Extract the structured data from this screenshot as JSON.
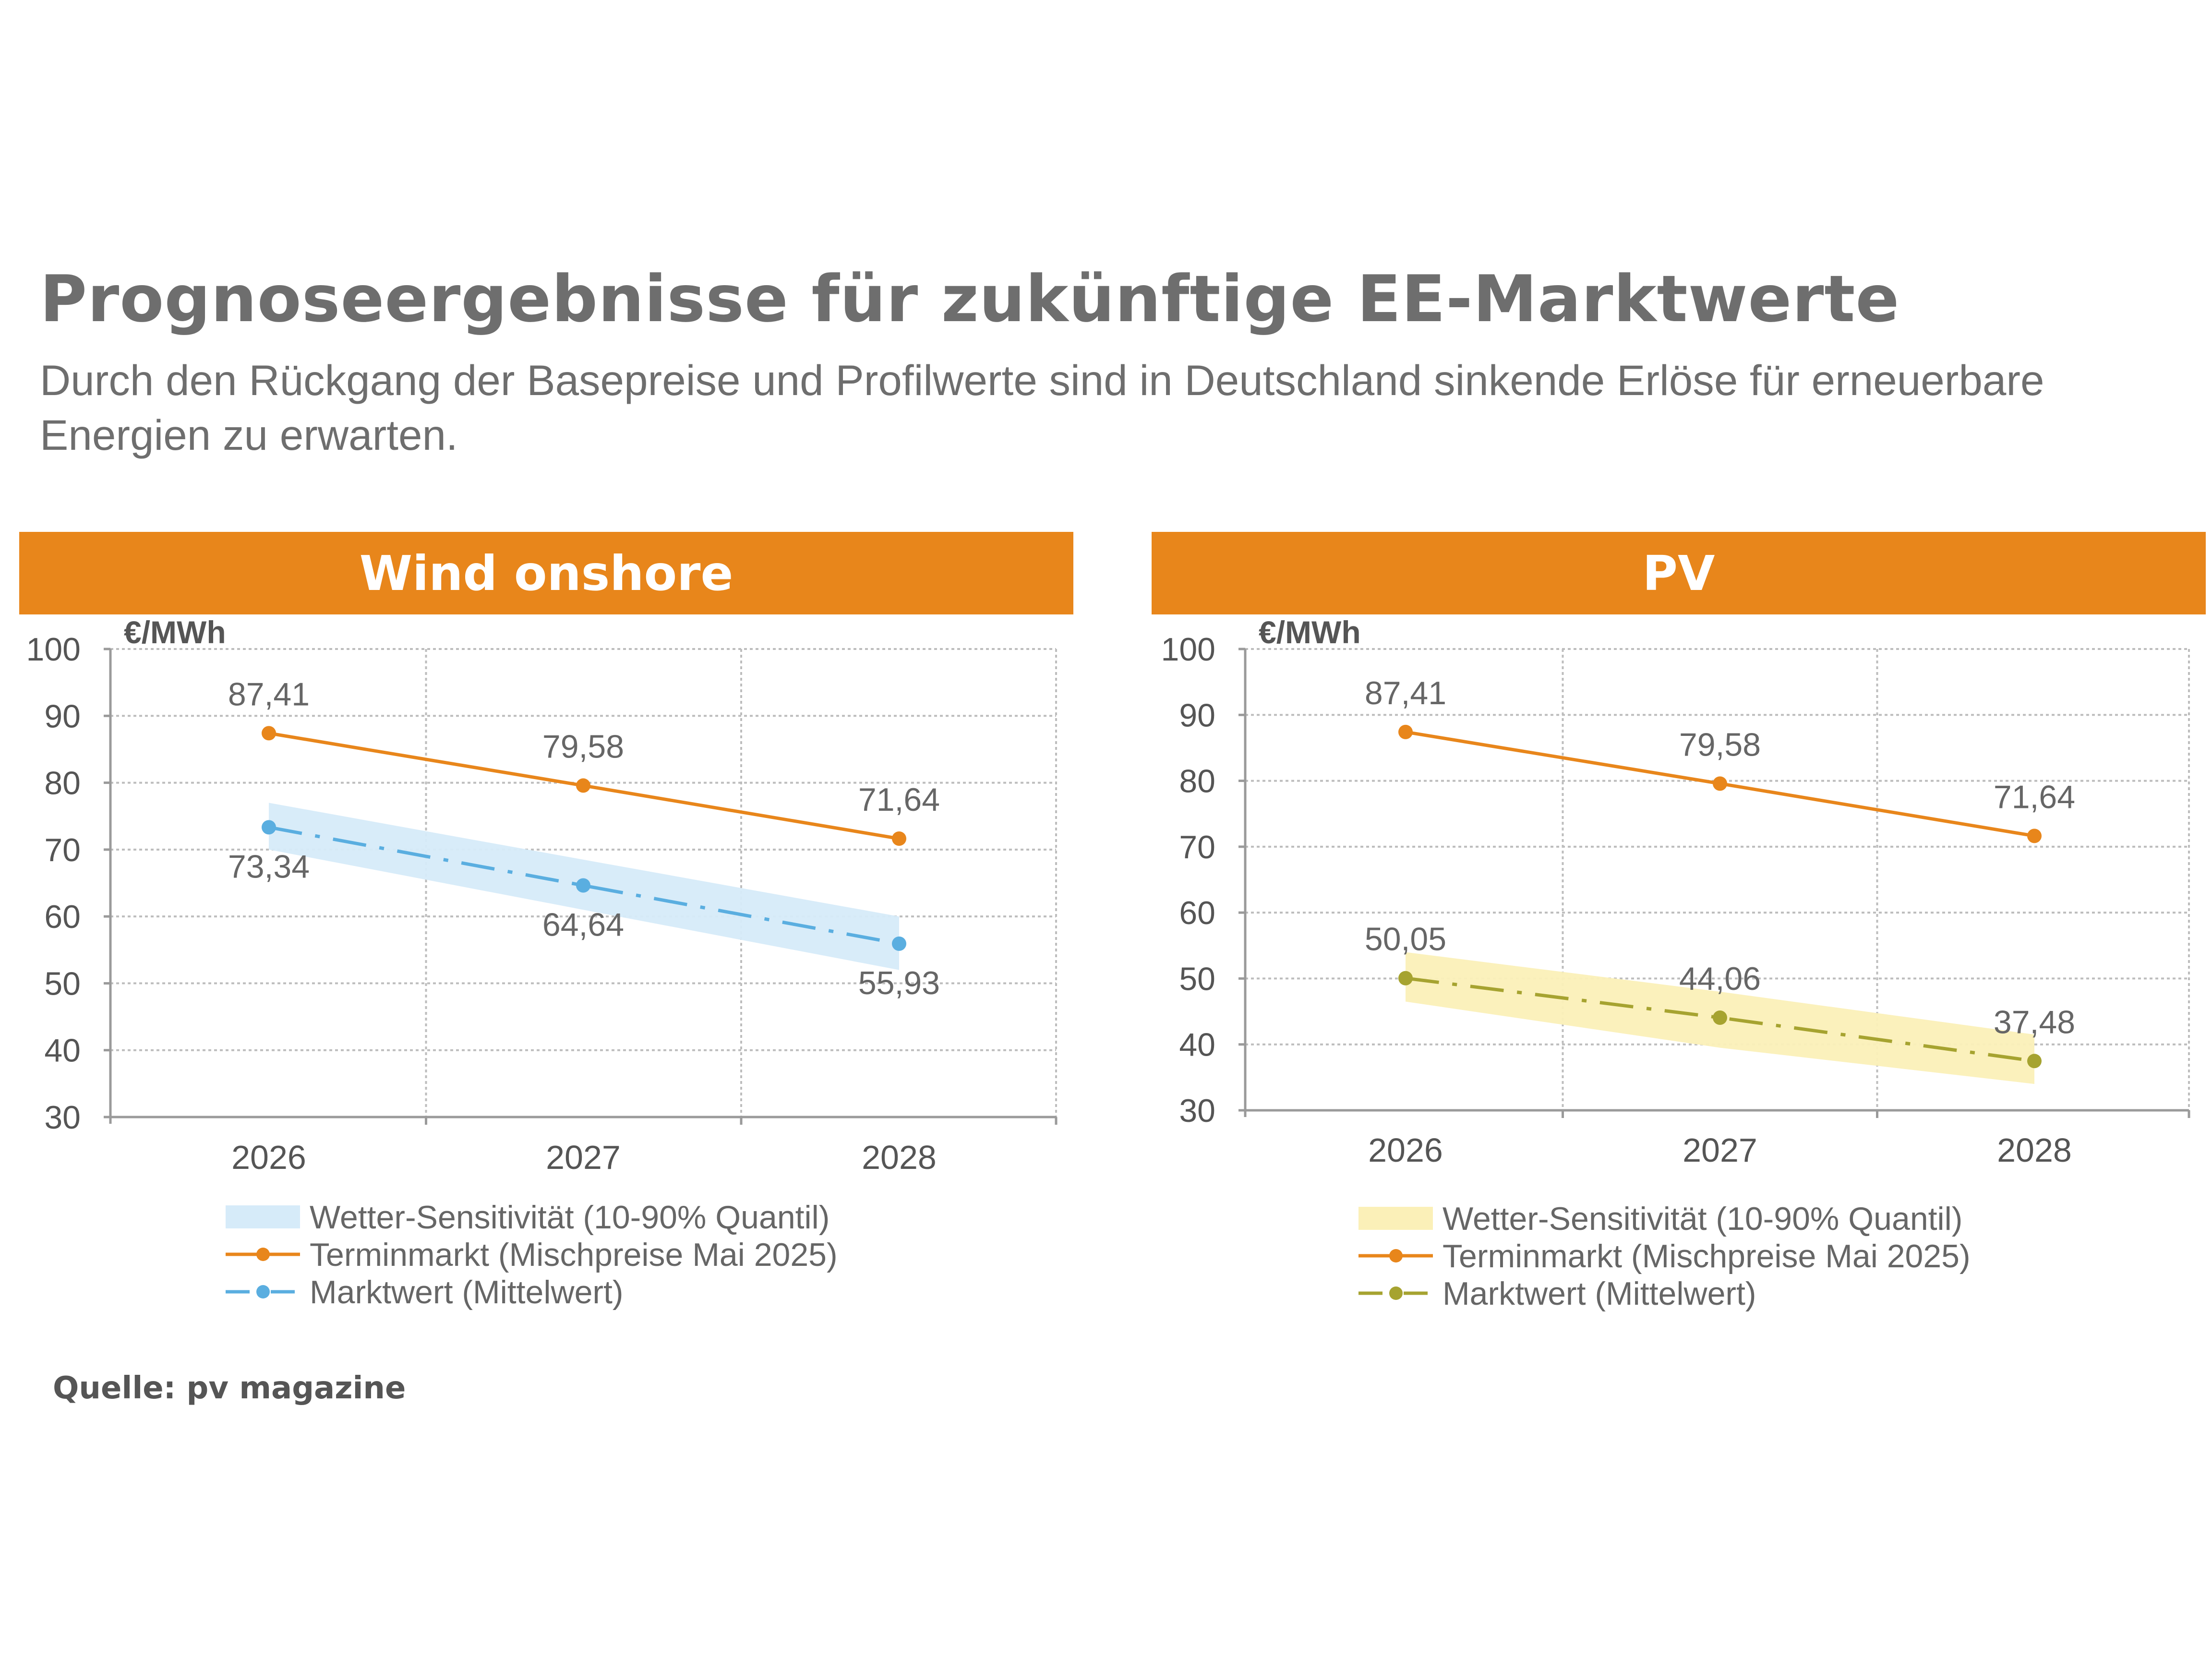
{
  "title": "Prognoseergebnisse für zukünftige EE-Marktwerte",
  "subtitle": "Durch den Rückgang der Basepreise und Profilwerte sind in Deutschland sinkende Erlöse für erneuerbare Energien zu erwarten.",
  "source": "Quelle: pv magazine",
  "colors": {
    "header": "#e8861b",
    "terminmarkt": "#e8861b",
    "wind": "#5aaee0",
    "wind_band": "#d6ebf9",
    "pv": "#a6a330",
    "pv_band": "#fbf0b8"
  },
  "chart_data": [
    {
      "type": "line",
      "title": "Wind onshore",
      "ylabel": "€/MWh",
      "ylim": [
        30,
        100
      ],
      "yticks": [
        "30",
        "40",
        "50",
        "60",
        "70",
        "80",
        "90",
        "100"
      ],
      "categories": [
        "2026",
        "2027",
        "2028"
      ],
      "grid": true,
      "series": [
        {
          "name": "Terminmarkt (Mischpreise Mai 2025)",
          "values": [
            87.41,
            79.58,
            71.64
          ],
          "labels": [
            "87,41",
            "79,58",
            "71,64"
          ],
          "color": "#e8861b",
          "style": "solid",
          "label_position": "above"
        },
        {
          "name": "Marktwert (Mittelwert)",
          "values": [
            73.34,
            64.64,
            55.93
          ],
          "labels": [
            "73,34",
            "64,64",
            "55,93"
          ],
          "color": "#5aaee0",
          "style": "dashdot",
          "label_position": "below"
        }
      ],
      "band": {
        "name": "Wetter-Sensitivität (10-90% Quantil)",
        "lower": [
          70,
          61,
          52
        ],
        "upper": [
          77,
          68.5,
          60
        ],
        "color": "#d6ebf9"
      }
    },
    {
      "type": "line",
      "title": "PV",
      "ylabel": "€/MWh",
      "ylim": [
        30,
        100
      ],
      "yticks": [
        "30",
        "40",
        "50",
        "60",
        "70",
        "80",
        "90",
        "100"
      ],
      "categories": [
        "2026",
        "2027",
        "2028"
      ],
      "grid": true,
      "series": [
        {
          "name": "Terminmarkt (Mischpreise Mai 2025)",
          "values": [
            87.41,
            79.58,
            71.64
          ],
          "labels": [
            "87,41",
            "79,58",
            "71,64"
          ],
          "color": "#e8861b",
          "style": "solid",
          "label_position": "above"
        },
        {
          "name": "Marktwert (Mittelwert)",
          "values": [
            50.05,
            44.06,
            37.48
          ],
          "labels": [
            "50,05",
            "44,06",
            "37,48"
          ],
          "color": "#a6a330",
          "style": "dashdot",
          "label_position": "above"
        }
      ],
      "band": {
        "name": "Wetter-Sensitivität (10-90% Quantil)",
        "lower": [
          46.5,
          39.5,
          34
        ],
        "upper": [
          54,
          48,
          41.5
        ],
        "color": "#fbf0b8"
      }
    }
  ]
}
